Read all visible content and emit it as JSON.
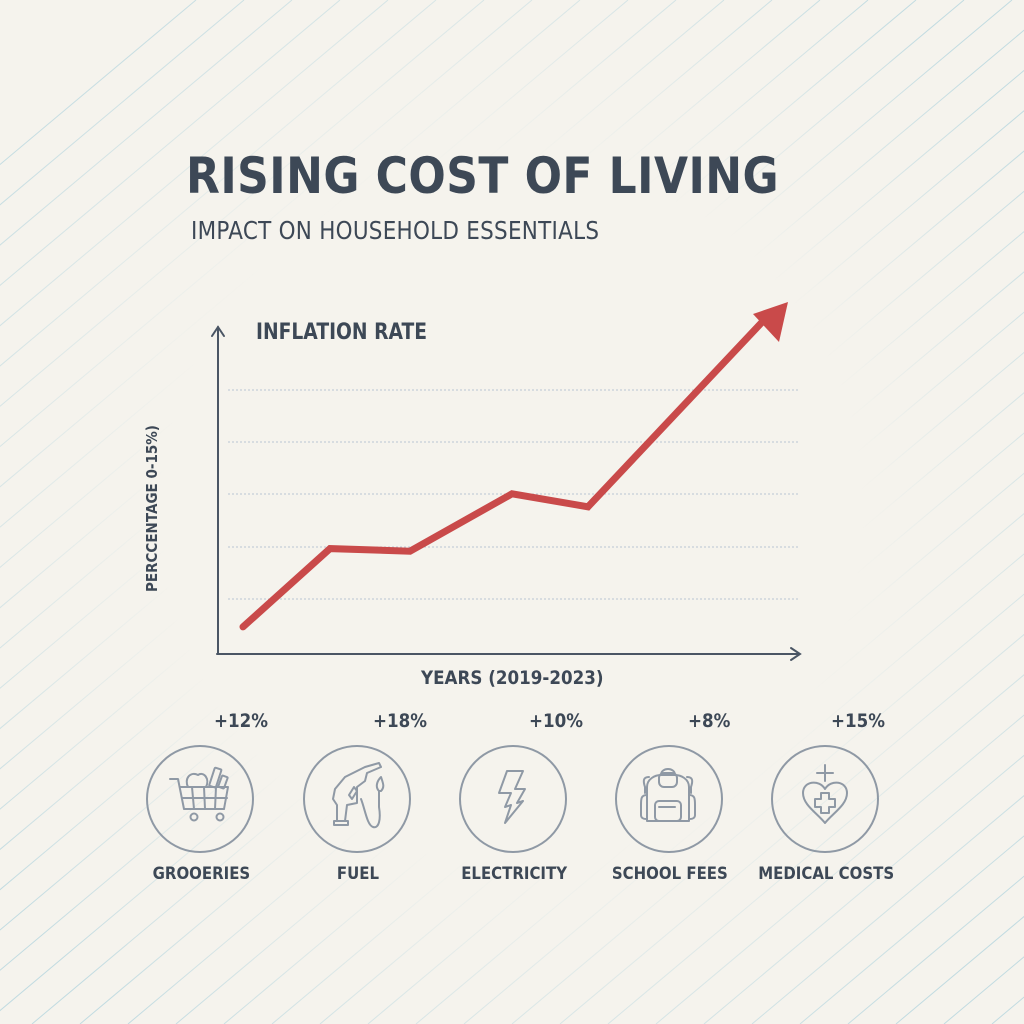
{
  "header": {
    "title": "RISING COST OF LIVING",
    "subtitle": "IMPACT ON HOUSEHOLD ESSENTIALS"
  },
  "chart": {
    "title": "INFLATION RATE",
    "ylabel": "PERCCENTAGE 0-15%)",
    "xlabel": "YEARS (2019-2023)"
  },
  "chart_data": {
    "type": "line",
    "title": "INFLATION RATE",
    "xlabel": "YEARS (2019-2023)",
    "ylabel": "PERCCENTAGE 0-15%)",
    "ylim": [
      0,
      15
    ],
    "grid": true,
    "grid_style": "dotted horizontal",
    "legend": "none",
    "x": [
      "2019",
      "2019.5",
      "2020.5",
      "2021.5",
      "2022",
      "2023"
    ],
    "series": [
      {
        "name": "Inflation Rate",
        "color": "#c94a4a",
        "values": [
          1.0,
          4.0,
          3.9,
          6.1,
          5.6,
          13.0
        ]
      }
    ],
    "annotations": [
      "Line ends in an upward arrow beyond the top gridline"
    ]
  },
  "categories": [
    {
      "name": "GROOERIES",
      "change": "+12%",
      "icon": "shopping-cart-icon"
    },
    {
      "name": "FUEL",
      "change": "+18%",
      "icon": "fuel-pump-icon"
    },
    {
      "name": "ELECTRICITY",
      "change": "+10%",
      "icon": "lightning-bolt-icon"
    },
    {
      "name": "SCHOOL FEES",
      "change": "+8%",
      "icon": "backpack-icon"
    },
    {
      "name": "MEDICAL COSTS",
      "change": "+15%",
      "icon": "heart-medical-icon"
    }
  ],
  "colors": {
    "background": "#f5f3ed",
    "text": "#3d4856",
    "line": "#c94a4a",
    "icon_stroke": "#8f99a5",
    "grid": "#b9c6d2",
    "bg_lines": "#bcd9e0"
  }
}
